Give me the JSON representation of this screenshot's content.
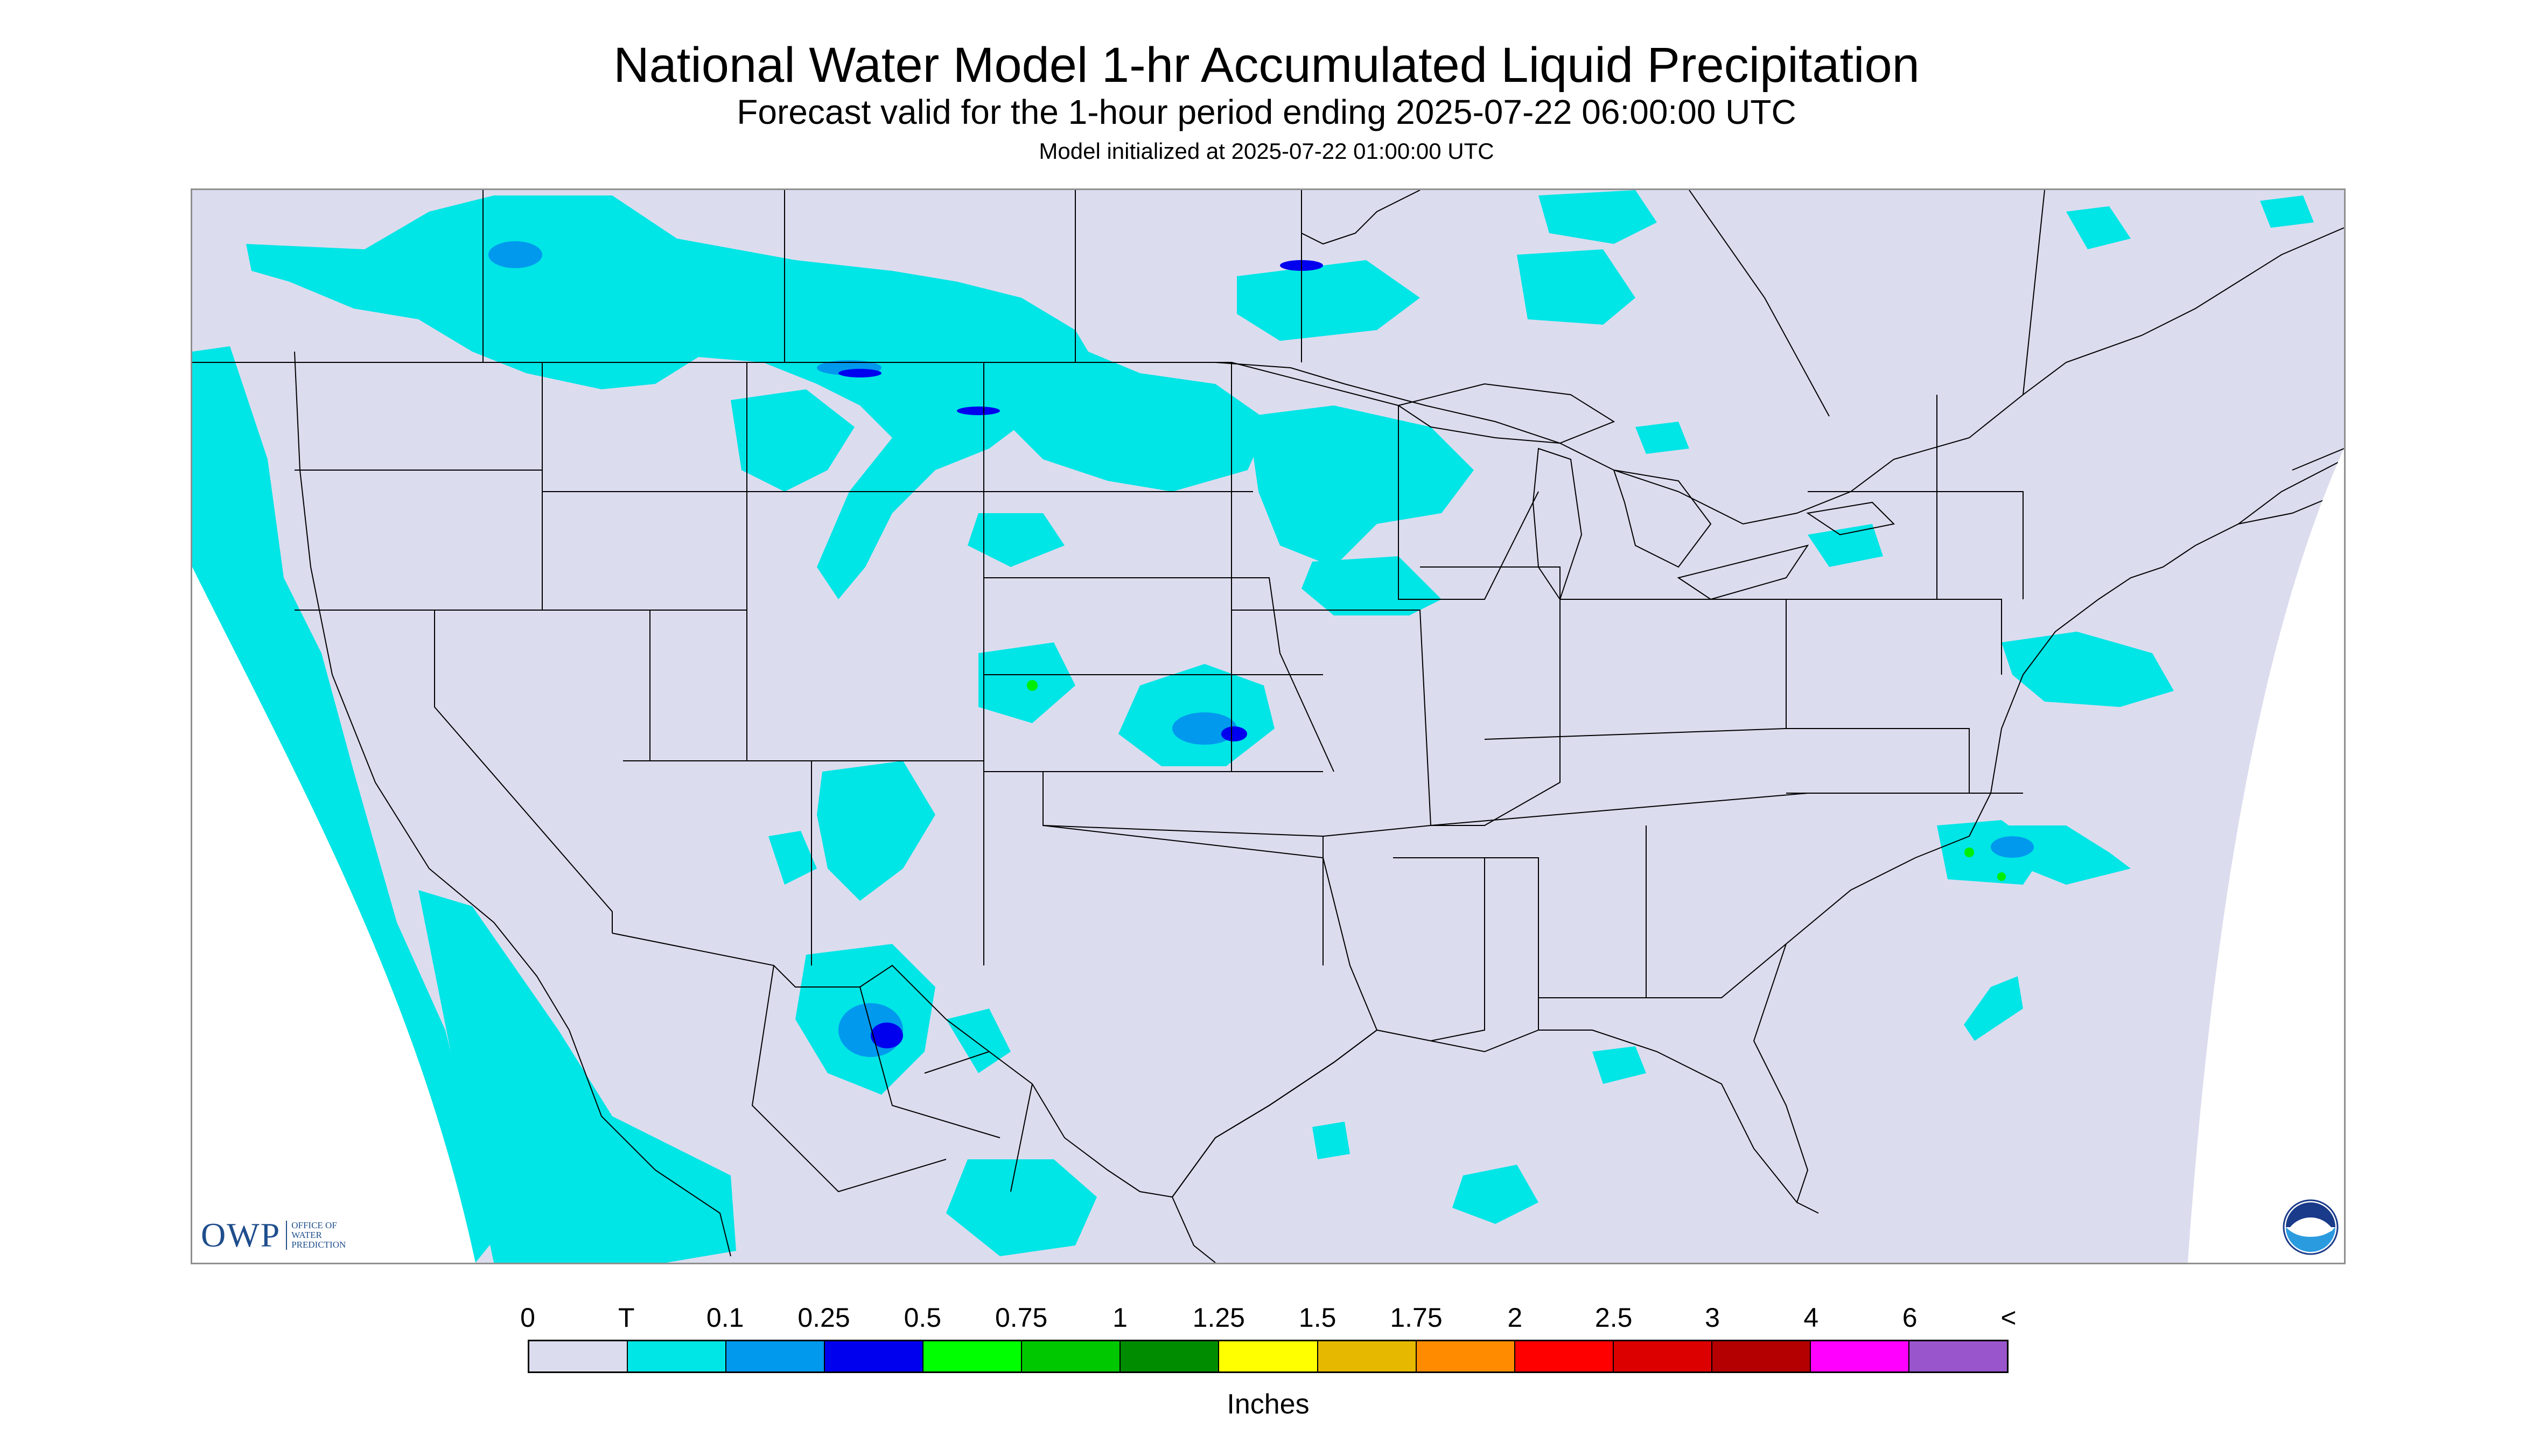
{
  "header": {
    "title": "National Water Model 1-hr Accumulated Liquid Precipitation",
    "subtitle": "Forecast valid for the 1-hour period ending 2025-07-22 06:00:00 UTC",
    "init_line": "Model initialized at 2025-07-22 01:00:00 UTC"
  },
  "map": {
    "background_color": "#dcdcef",
    "outside_domain_color": "#ffffff",
    "boundary_color": "#000000",
    "precip_colors": {
      "trace": "#00e5e5",
      "light": "#0099ee",
      "moderate": "#0000ee",
      "green": "#00ee00"
    }
  },
  "logos": {
    "owp_letters": "OWP",
    "owp_subtext": "OFFICE OF\nWATER\nPREDICTION",
    "noaa_icon": "noaa-logo"
  },
  "legend": {
    "labels": [
      "0",
      "T",
      "0.1",
      "0.25",
      "0.5",
      "0.75",
      "1",
      "1.25",
      "1.5",
      "1.75",
      "2",
      "2.5",
      "3",
      "4",
      "6",
      "<"
    ],
    "colors": [
      "#dcdcef",
      "#00e5e5",
      "#0099ee",
      "#0000ee",
      "#00ff00",
      "#00c800",
      "#008c00",
      "#ffff00",
      "#e6b800",
      "#ff8c00",
      "#ff0000",
      "#dd0000",
      "#b40000",
      "#ff00ff",
      "#9955cc"
    ],
    "units": "Inches"
  }
}
